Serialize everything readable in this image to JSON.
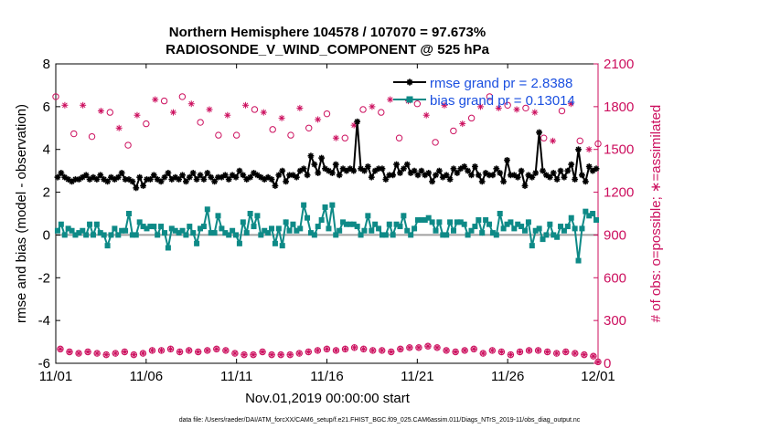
{
  "chart_data": {
    "type": "line",
    "title": [
      "Northern Hemisphere 104578 / 107070 = 97.673%",
      "RADIOSONDE_V_WIND_COMPONENT @ 525 hPa"
    ],
    "xlabel": "Nov.01,2019 00:00:00 start",
    "ylabel_left": "rmse and bias (model - observation)",
    "ylabel_right": "# of obs: o=possible; ∗=assimilated",
    "footer": "data file: /Users/raeder/DAI/ATM_forcXX/CAM6_setup/f.e21.FHIST_BGC.f09_025.CAM6assim.011/Diags_NTrS_2019-11/obs_diag_output.nc",
    "x_ticks": [
      {
        "value": 0,
        "label": "11/01"
      },
      {
        "value": 5,
        "label": "11/06"
      },
      {
        "value": 10,
        "label": "11/11"
      },
      {
        "value": 15,
        "label": "11/16"
      },
      {
        "value": 20,
        "label": "11/21"
      },
      {
        "value": 25,
        "label": "11/26"
      },
      {
        "value": 30,
        "label": "12/01"
      }
    ],
    "xlim": [
      0,
      30
    ],
    "ylim_left": [
      -6,
      8
    ],
    "ylim_right": [
      0,
      2100
    ],
    "yticks_left": [
      -6,
      -4,
      -2,
      0,
      2,
      4,
      6,
      8
    ],
    "yticks_right": [
      0,
      300,
      600,
      900,
      1200,
      1500,
      1800,
      2100
    ],
    "legend": [
      {
        "label": "rmse grand pr = 2.8388",
        "color": "#000000"
      },
      {
        "label": "bias grand pr = 0.13014",
        "color": "#0e8a87"
      }
    ],
    "colors": {
      "rmse": "#000000",
      "bias": "#0e8a87",
      "obs": "#cc0f5e",
      "legend_text": "#1a4fe0",
      "zero_line": "#a0a0a0"
    },
    "series": [
      {
        "name": "rmse",
        "axis": "left",
        "marker": "asterisk",
        "values": [
          2.7,
          2.9,
          2.7,
          2.6,
          2.5,
          2.6,
          2.6,
          2.7,
          2.8,
          2.6,
          2.7,
          2.6,
          2.8,
          2.6,
          2.5,
          2.7,
          2.6,
          2.7,
          2.9,
          2.6,
          2.6,
          2.5,
          2.2,
          2.7,
          2.3,
          2.6,
          2.6,
          2.8,
          2.6,
          2.5,
          2.7,
          2.9,
          2.6,
          2.7,
          2.6,
          2.8,
          2.5,
          2.7,
          2.9,
          2.6,
          2.8,
          2.6,
          2.9,
          2.7,
          2.5,
          2.7,
          2.7,
          2.8,
          2.6,
          2.8,
          2.7,
          3.0,
          2.8,
          2.6,
          2.7,
          2.9,
          2.8,
          2.7,
          2.6,
          2.7,
          2.6,
          2.3,
          2.8,
          3.0,
          2.5,
          2.8,
          2.8,
          2.7,
          3.0,
          3.1,
          2.8,
          3.7,
          3.3,
          2.9,
          3.6,
          3.1,
          3.0,
          2.9,
          3.3,
          2.8,
          3.1,
          3.0,
          3.1,
          3.0,
          5.3,
          3.1,
          3.0,
          3.2,
          2.7,
          3.0,
          3.1,
          3.1,
          2.6,
          2.8,
          2.8,
          3.3,
          2.9,
          3.1,
          3.3,
          2.9,
          3.0,
          2.8,
          3.0,
          2.8,
          2.9,
          2.5,
          2.8,
          3.0,
          2.7,
          2.8,
          2.6,
          3.1,
          2.9,
          3.1,
          3.2,
          3.0,
          2.8,
          3.2,
          2.8,
          2.5,
          2.9,
          2.8,
          2.8,
          3.1,
          2.9,
          2.5,
          3.5,
          2.8,
          2.8,
          2.7,
          3.0,
          2.3,
          2.8,
          2.7,
          2.9,
          4.8,
          3.0,
          2.8,
          2.7,
          2.9,
          2.6,
          3.0,
          2.7,
          3.0,
          3.3,
          2.6,
          4.0,
          2.8,
          2.5,
          3.2,
          3.0,
          3.1
        ]
      },
      {
        "name": "bias",
        "axis": "left",
        "marker": "square",
        "values": [
          0.2,
          0.5,
          0.0,
          0.3,
          0.2,
          0.0,
          0.1,
          0.2,
          0.0,
          0.5,
          0.0,
          0.5,
          0.1,
          0.0,
          -0.5,
          0.0,
          0.3,
          0.0,
          0.2,
          0.2,
          1.0,
          0.0,
          0.0,
          0.6,
          0.4,
          0.3,
          0.4,
          0.4,
          0.0,
          0.4,
          0.1,
          -0.6,
          0.3,
          0.2,
          0.1,
          0.2,
          0.0,
          0.4,
          0.1,
          -0.4,
          0.3,
          0.4,
          1.2,
          0.1,
          0.1,
          0.9,
          0.3,
          0.1,
          0.0,
          0.2,
          0.0,
          -0.4,
          0.6,
          0.1,
          1.0,
          0.4,
          0.9,
          0.0,
          0.2,
          0.1,
          0.3,
          -0.4,
          0.3,
          -0.5,
          0.6,
          0.2,
          0.5,
          0.2,
          0.3,
          1.4,
          0.8,
          0.1,
          0.0,
          0.4,
          0.7,
          1.3,
          0.3,
          1.4,
          0.0,
          0.2,
          0.6,
          0.5,
          0.5,
          0.5,
          0.4,
          0.0,
          0.2,
          0.9,
          0.2,
          0.5,
          0.3,
          0.0,
          0.0,
          0.5,
          0.0,
          0.5,
          0.4,
          0.9,
          0.2,
          0.0,
          0.3,
          0.7,
          0.7,
          0.7,
          0.8,
          0.6,
          0.2,
          0.6,
          0.0,
          0.0,
          0.6,
          0.2,
          0.6,
          0.6,
          0.5,
          0.0,
          0.2,
          0.4,
          0.7,
          0.1,
          0.7,
          0.5,
          0.1,
          0.0,
          1.0,
          0.3,
          0.5,
          0.6,
          0.3,
          0.5,
          0.4,
          0.2,
          0.6,
          -0.5,
          0.2,
          0.3,
          -0.2,
          0.0,
          0.5,
          0.0,
          -0.1,
          0.4,
          0.2,
          0.4,
          0.8,
          0.3,
          -1.2,
          0.3,
          1.1,
          0.9,
          1.0,
          0.7
        ]
      },
      {
        "name": "obs possible",
        "axis": "right",
        "marker": "circle",
        "x": [
          0,
          1,
          2,
          3,
          4,
          5,
          6,
          7,
          8,
          9,
          10,
          11,
          12,
          13,
          14,
          15,
          16,
          17,
          18,
          19,
          20,
          21,
          22,
          23,
          24,
          25,
          26,
          27,
          28,
          29,
          30
        ],
        "values": [
          1870,
          1610,
          1590,
          1760,
          1530,
          1680,
          1840,
          1870,
          1690,
          1600,
          1600,
          1780,
          1640,
          1600,
          1650,
          1750,
          1580,
          1780,
          1760,
          1580,
          1820,
          1550,
          1630,
          1720,
          1870,
          1810,
          1790,
          1580,
          1770,
          1560,
          1540
        ]
      },
      {
        "name": "obs assimilated",
        "axis": "right",
        "marker": "asterisk",
        "x": [
          0.5,
          1.5,
          2.5,
          3.5,
          4.5,
          5.5,
          6.5,
          7.5,
          8.5,
          9.5,
          10.5,
          11.5,
          12.5,
          13.5,
          14.5,
          15.5,
          16.5,
          17.5,
          18.5,
          19.5,
          20.5,
          21.5,
          22.5,
          23.5,
          24.5,
          25.5,
          26.5,
          27.5,
          28.5,
          29.5
        ],
        "values": [
          1810,
          1810,
          1770,
          1650,
          1740,
          1850,
          1760,
          1820,
          1780,
          1740,
          1810,
          1760,
          1720,
          1790,
          1710,
          1580,
          1670,
          1800,
          1850,
          1840,
          1740,
          1810,
          1680,
          1800,
          1790,
          1780,
          1760,
          1560,
          1820,
          1500
        ]
      },
      {
        "name": "obs low possible",
        "axis": "right",
        "marker": "circle",
        "values": [
          100,
          80,
          70,
          80,
          70,
          60,
          70,
          80,
          60,
          70,
          90,
          90,
          100,
          80,
          90,
          80,
          90,
          100,
          90,
          70,
          60,
          60,
          80,
          60,
          60,
          60,
          70,
          80,
          90,
          100,
          90,
          100,
          110,
          100,
          90,
          90,
          80,
          100,
          110,
          110,
          120,
          110,
          90,
          80,
          90,
          100,
          70,
          90,
          80,
          60,
          80,
          90,
          90,
          80,
          70,
          80,
          70,
          60,
          50,
          10
        ]
      },
      {
        "name": "obs low assimilated",
        "axis": "right",
        "marker": "asterisk",
        "values": [
          100,
          80,
          70,
          80,
          70,
          60,
          70,
          80,
          60,
          70,
          90,
          90,
          100,
          80,
          90,
          80,
          90,
          100,
          90,
          70,
          60,
          60,
          80,
          60,
          60,
          60,
          70,
          80,
          90,
          100,
          90,
          100,
          110,
          100,
          90,
          90,
          80,
          100,
          110,
          110,
          120,
          110,
          90,
          80,
          90,
          100,
          70,
          90,
          80,
          60,
          80,
          90,
          90,
          80,
          70,
          80,
          70,
          60,
          50,
          10
        ]
      }
    ]
  }
}
